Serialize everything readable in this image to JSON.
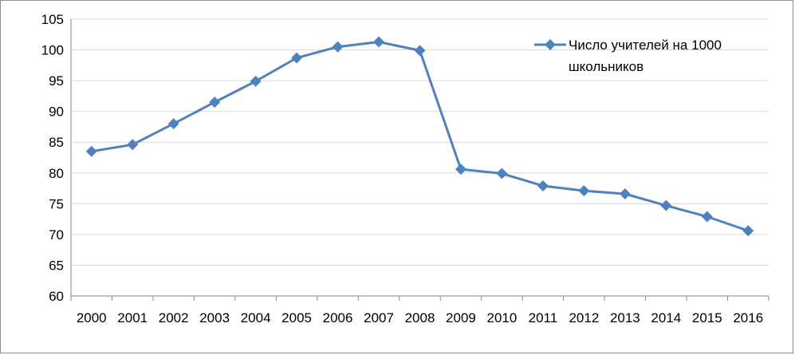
{
  "chart_data": {
    "type": "line",
    "title": "",
    "xlabel": "",
    "ylabel": "",
    "x": [
      "2000",
      "2001",
      "2002",
      "2003",
      "2004",
      "2005",
      "2006",
      "2007",
      "2008",
      "2009",
      "2010",
      "2011",
      "2012",
      "2013",
      "2014",
      "2015",
      "2016"
    ],
    "series": [
      {
        "name": "Число учителей на 1000 школьников",
        "values": [
          83.5,
          84.6,
          88.0,
          91.5,
          94.9,
          98.7,
          100.5,
          101.3,
          99.9,
          80.6,
          79.9,
          77.9,
          77.1,
          76.6,
          74.7,
          72.9,
          70.6
        ],
        "color": "#4f81bd"
      }
    ],
    "ylim": [
      60,
      105
    ],
    "yticks": [
      60,
      65,
      70,
      75,
      80,
      85,
      90,
      95,
      100,
      105
    ],
    "grid": true,
    "legend": {
      "placement": "top-right",
      "lines": [
        "Число учителей на 1000",
        "школьников"
      ]
    },
    "marker": "diamond"
  }
}
